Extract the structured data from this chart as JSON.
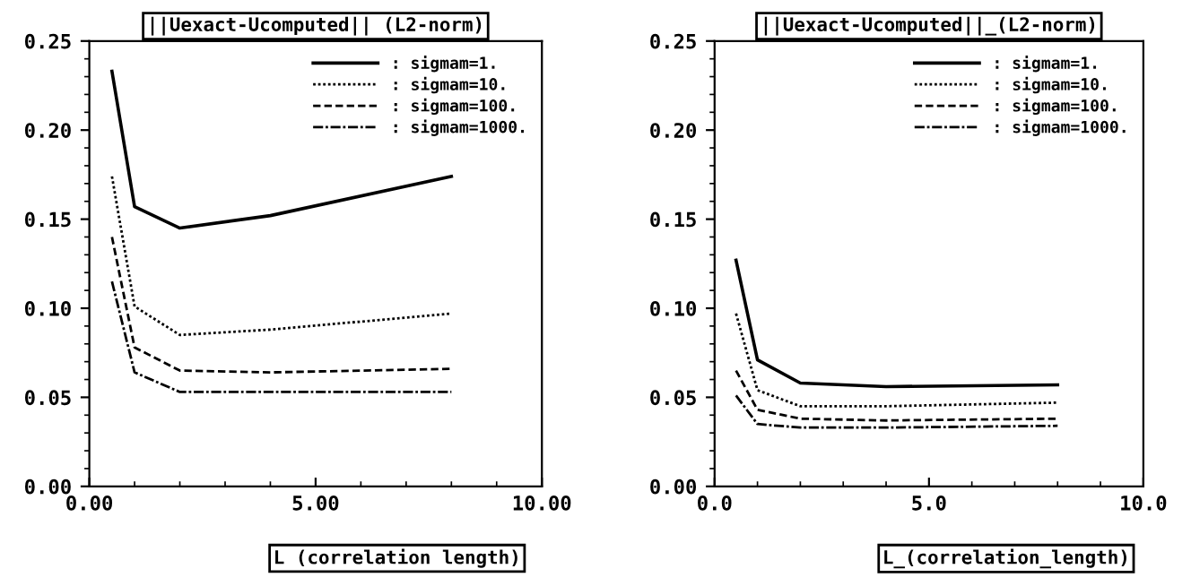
{
  "chart_data": [
    {
      "type": "line",
      "title": "||Uexact-Ucomputed|| (L2-norm)",
      "xlabel": "L (correlation length)",
      "x": [
        0.5,
        1,
        2,
        4,
        8
      ],
      "xlim": [
        0,
        10
      ],
      "xticks": [
        {
          "value": 0,
          "label": "0.00"
        },
        {
          "value": 5,
          "label": "5.00"
        },
        {
          "value": 10,
          "label": "10.00"
        }
      ],
      "ylim": [
        0,
        0.25
      ],
      "yticks": [
        {
          "value": 0,
          "label": "0.00"
        },
        {
          "value": 0.05,
          "label": "0.05"
        },
        {
          "value": 0.1,
          "label": "0.10"
        },
        {
          "value": 0.15,
          "label": "0.15"
        },
        {
          "value": 0.2,
          "label": "0.20"
        },
        {
          "value": 0.25,
          "label": "0.25"
        }
      ],
      "grid": false,
      "legend": "top right",
      "marker": "none",
      "series": [
        {
          "name": ": sigmam=1.",
          "color": "#000000",
          "line_style": "solid",
          "values": [
            0.233,
            0.157,
            0.145,
            0.152,
            0.174
          ]
        },
        {
          "name": ": sigmam=10.",
          "color": "#000000",
          "line_style": "dotted",
          "values": [
            0.174,
            0.101,
            0.085,
            0.088,
            0.097
          ]
        },
        {
          "name": ": sigmam=100.",
          "color": "#000000",
          "line_style": "dashed",
          "values": [
            0.14,
            0.078,
            0.065,
            0.064,
            0.066
          ]
        },
        {
          "name": ": sigmam=1000.",
          "color": "#000000",
          "line_style": "dashdot",
          "values": [
            0.115,
            0.064,
            0.053,
            0.053,
            0.053
          ]
        }
      ]
    },
    {
      "type": "line",
      "title": "||Uexact-Ucomputed||_(L2-norm)",
      "xlabel": "L_(correlation_length)",
      "x": [
        0.5,
        1,
        2,
        4,
        8
      ],
      "xlim": [
        0,
        10
      ],
      "xticks": [
        {
          "value": 0,
          "label": "0.0"
        },
        {
          "value": 5,
          "label": "5.0"
        },
        {
          "value": 10,
          "label": "10.0"
        }
      ],
      "ylim": [
        0,
        0.25
      ],
      "yticks": [
        {
          "value": 0,
          "label": "0.00"
        },
        {
          "value": 0.05,
          "label": "0.05"
        },
        {
          "value": 0.1,
          "label": "0.10"
        },
        {
          "value": 0.15,
          "label": "0.15"
        },
        {
          "value": 0.2,
          "label": "0.20"
        },
        {
          "value": 0.25,
          "label": "0.25"
        }
      ],
      "grid": false,
      "legend": "top right",
      "marker": "none",
      "series": [
        {
          "name": ": sigmam=1.",
          "color": "#000000",
          "line_style": "solid",
          "values": [
            0.127,
            0.071,
            0.058,
            0.056,
            0.057
          ]
        },
        {
          "name": ": sigmam=10.",
          "color": "#000000",
          "line_style": "dotted",
          "values": [
            0.097,
            0.054,
            0.045,
            0.045,
            0.047
          ]
        },
        {
          "name": ": sigmam=100.",
          "color": "#000000",
          "line_style": "dashed",
          "values": [
            0.065,
            0.043,
            0.038,
            0.037,
            0.038
          ]
        },
        {
          "name": ": sigmam=1000.",
          "color": "#000000",
          "line_style": "dashdot",
          "values": [
            0.051,
            0.035,
            0.033,
            0.033,
            0.034
          ]
        }
      ]
    }
  ]
}
